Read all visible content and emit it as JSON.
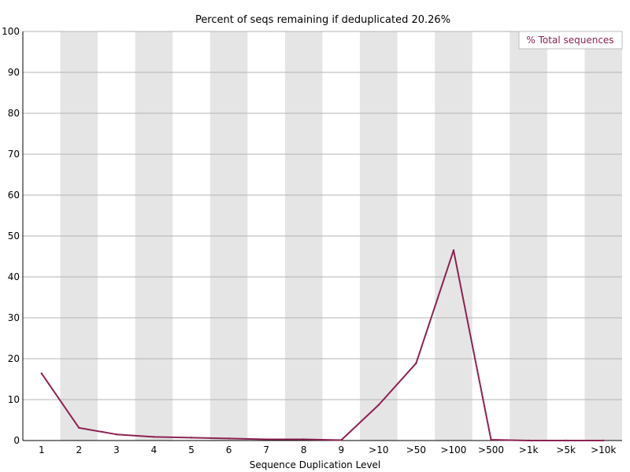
{
  "chart_data": {
    "type": "line",
    "title": "Percent of seqs remaining if deduplicated 20.26%",
    "xlabel": "Sequence Duplication Level",
    "ylabel": "",
    "ylim": [
      0,
      100
    ],
    "yticks": [
      "0",
      "10",
      "20",
      "30",
      "40",
      "50",
      "60",
      "70",
      "80",
      "90",
      "100"
    ],
    "categories": [
      "1",
      "2",
      "3",
      "4",
      "5",
      "6",
      "7",
      "8",
      "9",
      ">10",
      ">50",
      ">100",
      ">500",
      ">1k",
      ">5k",
      ">10k"
    ],
    "series": [
      {
        "name": "% Total sequences",
        "color": "#8b2252",
        "values": [
          16.4,
          3.1,
          1.5,
          0.9,
          0.7,
          0.5,
          0.3,
          0.3,
          0.1,
          8.7,
          18.9,
          46.5,
          0.2,
          0.0,
          0.0,
          0.0
        ]
      }
    ],
    "grid": true,
    "legend_position": "top-right",
    "band_color": "#e5e5e5"
  }
}
